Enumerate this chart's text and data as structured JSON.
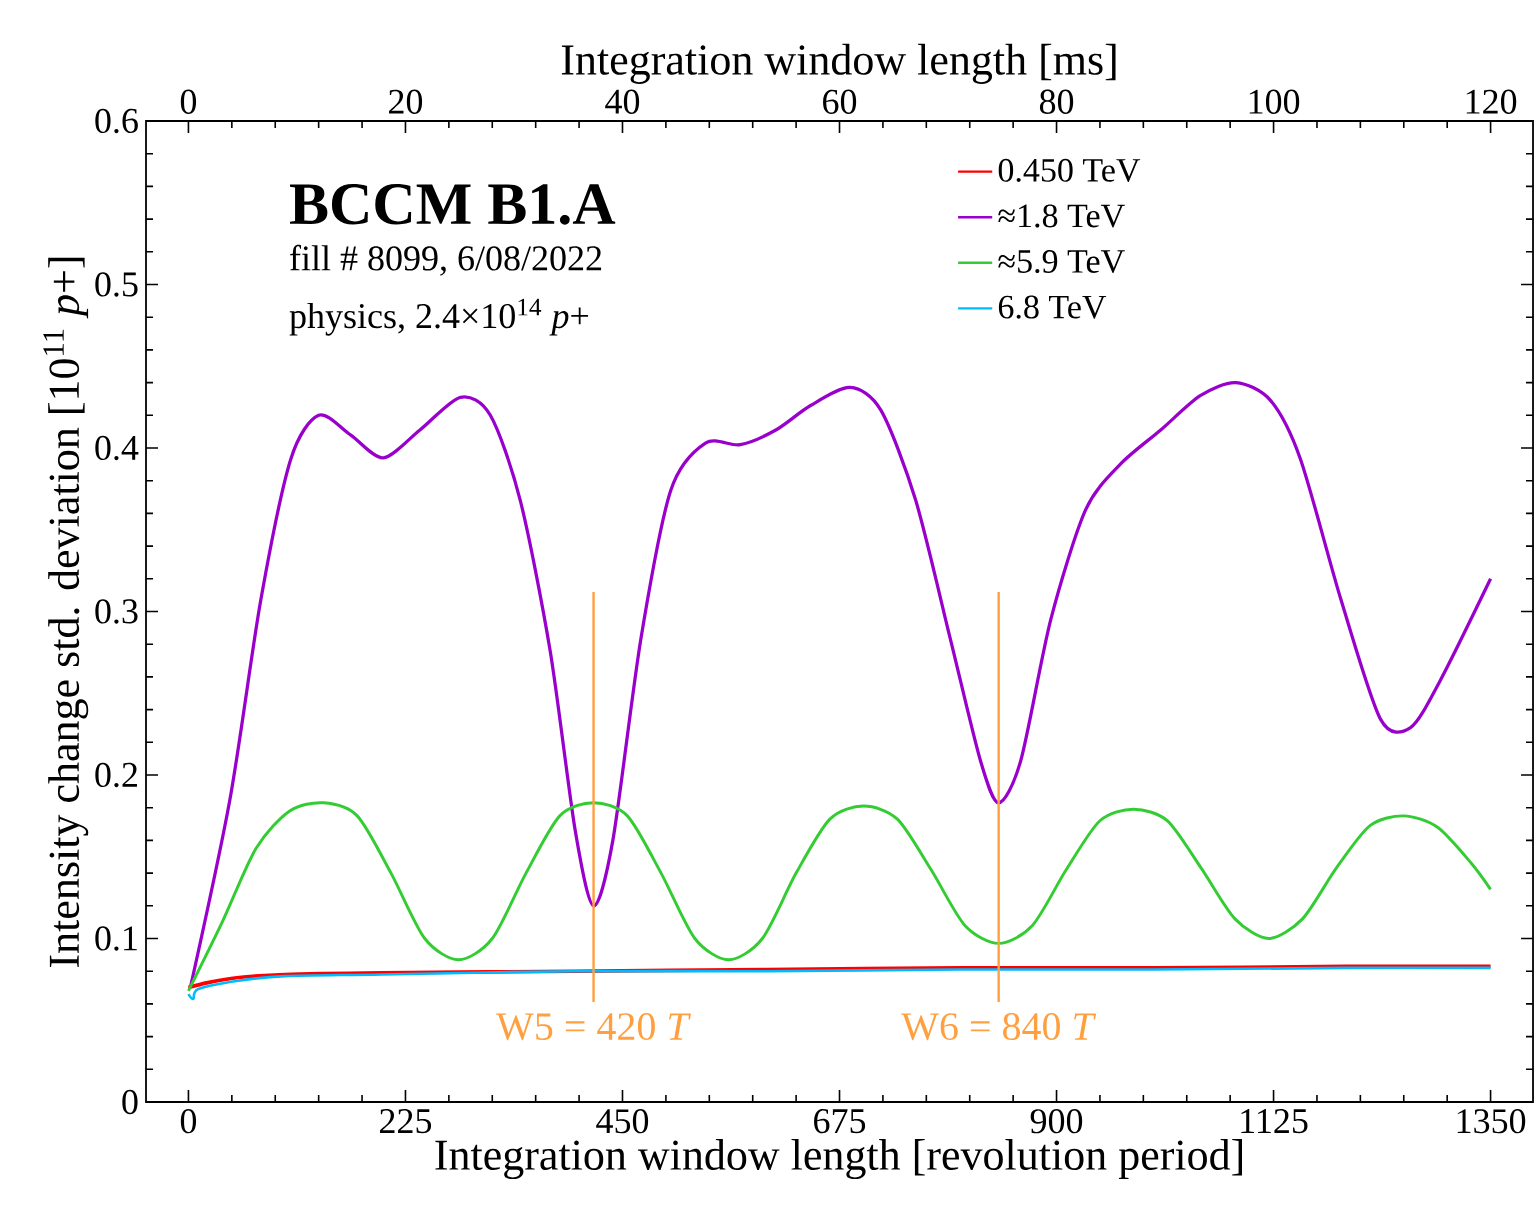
{
  "chart_data": {
    "type": "line",
    "xlabel": "Integration window length   [revolution period]",
    "x2label": "Integration window length   [ms]",
    "ylabel": "Intensity change std. deviation   [10$^{11}$ *p*+]",
    "annotations": [
      "BCCM  B1.A",
      "fill # 8099, 6/08/2022",
      "physics, 2.4×10$^{14}$ *p*+"
    ],
    "xlim": [
      -44,
      1394
    ],
    "xticks": [
      0,
      225,
      450,
      675,
      900,
      1125,
      1350
    ],
    "x2lim": [
      -3.91,
      123.91
    ],
    "x2ticks": [
      0,
      20,
      40,
      60,
      80,
      100,
      120
    ],
    "ylim": [
      0,
      0.6
    ],
    "yticks": [
      0,
      0.1,
      0.2,
      0.3,
      0.4,
      0.5,
      0.6
    ],
    "legend": "top right",
    "grid": false,
    "ref_lines": [
      {
        "axis": "x",
        "value": 420,
        "label": "W5 = 420 *T*",
        "color": "#ffa040"
      },
      {
        "axis": "x",
        "value": 840,
        "label": "W6 = 840 *T*",
        "color": "#ffa040"
      }
    ],
    "series": [
      {
        "name": "0.450 TeV",
        "color": "#ff0000",
        "x": [
          0,
          20,
          50,
          100,
          200,
          400,
          600,
          800,
          1000,
          1200,
          1350
        ],
        "values": [
          0.07,
          0.073,
          0.076,
          0.078,
          0.079,
          0.08,
          0.081,
          0.082,
          0.082,
          0.083,
          0.083
        ]
      },
      {
        "name": "≈1.8 TeV",
        "color": "#9900cc",
        "x": [
          2,
          43,
          75,
          106,
          135,
          168,
          202,
          240,
          282,
          313,
          344,
          375,
          401,
          420,
          440,
          469,
          500,
          536,
          572,
          609,
          645,
          686,
          718,
          754,
          790,
          821,
          840,
          863,
          894,
          930,
          966,
          1008,
          1049,
          1086,
          1122,
          1153,
          1195,
          1236,
          1267,
          1298,
          1350
        ],
        "values": [
          0.07,
          0.185,
          0.307,
          0.393,
          0.42,
          0.408,
          0.394,
          0.411,
          0.431,
          0.42,
          0.368,
          0.276,
          0.166,
          0.12,
          0.16,
          0.283,
          0.374,
          0.403,
          0.402,
          0.411,
          0.426,
          0.437,
          0.423,
          0.368,
          0.283,
          0.209,
          0.183,
          0.209,
          0.295,
          0.362,
          0.39,
          0.411,
          0.432,
          0.44,
          0.429,
          0.393,
          0.307,
          0.234,
          0.229,
          0.258,
          0.32
        ]
      },
      {
        "name": "≈5.9 TeV",
        "color": "#33cc33",
        "x": [
          0,
          35,
          70,
          105,
          140,
          175,
          210,
          245,
          280,
          315,
          350,
          385,
          420,
          455,
          490,
          525,
          560,
          595,
          630,
          665,
          700,
          735,
          770,
          805,
          840,
          875,
          910,
          945,
          980,
          1015,
          1050,
          1085,
          1120,
          1155,
          1190,
          1225,
          1260,
          1295,
          1330,
          1350
        ],
        "values": [
          0.068,
          0.11,
          0.155,
          0.178,
          0.183,
          0.175,
          0.14,
          0.1,
          0.087,
          0.1,
          0.14,
          0.175,
          0.183,
          0.175,
          0.14,
          0.1,
          0.087,
          0.1,
          0.14,
          0.173,
          0.181,
          0.173,
          0.142,
          0.108,
          0.097,
          0.108,
          0.142,
          0.172,
          0.179,
          0.172,
          0.143,
          0.112,
          0.1,
          0.112,
          0.143,
          0.169,
          0.175,
          0.168,
          0.146,
          0.13
        ]
      },
      {
        "name": "6.8 TeV",
        "color": "#00bbff",
        "x": [
          0,
          5,
          10,
          50,
          100,
          200,
          400,
          600,
          800,
          1000,
          1200,
          1350
        ],
        "values": [
          0.066,
          0.063,
          0.069,
          0.074,
          0.077,
          0.078,
          0.08,
          0.08,
          0.081,
          0.081,
          0.082,
          0.082
        ]
      }
    ]
  }
}
